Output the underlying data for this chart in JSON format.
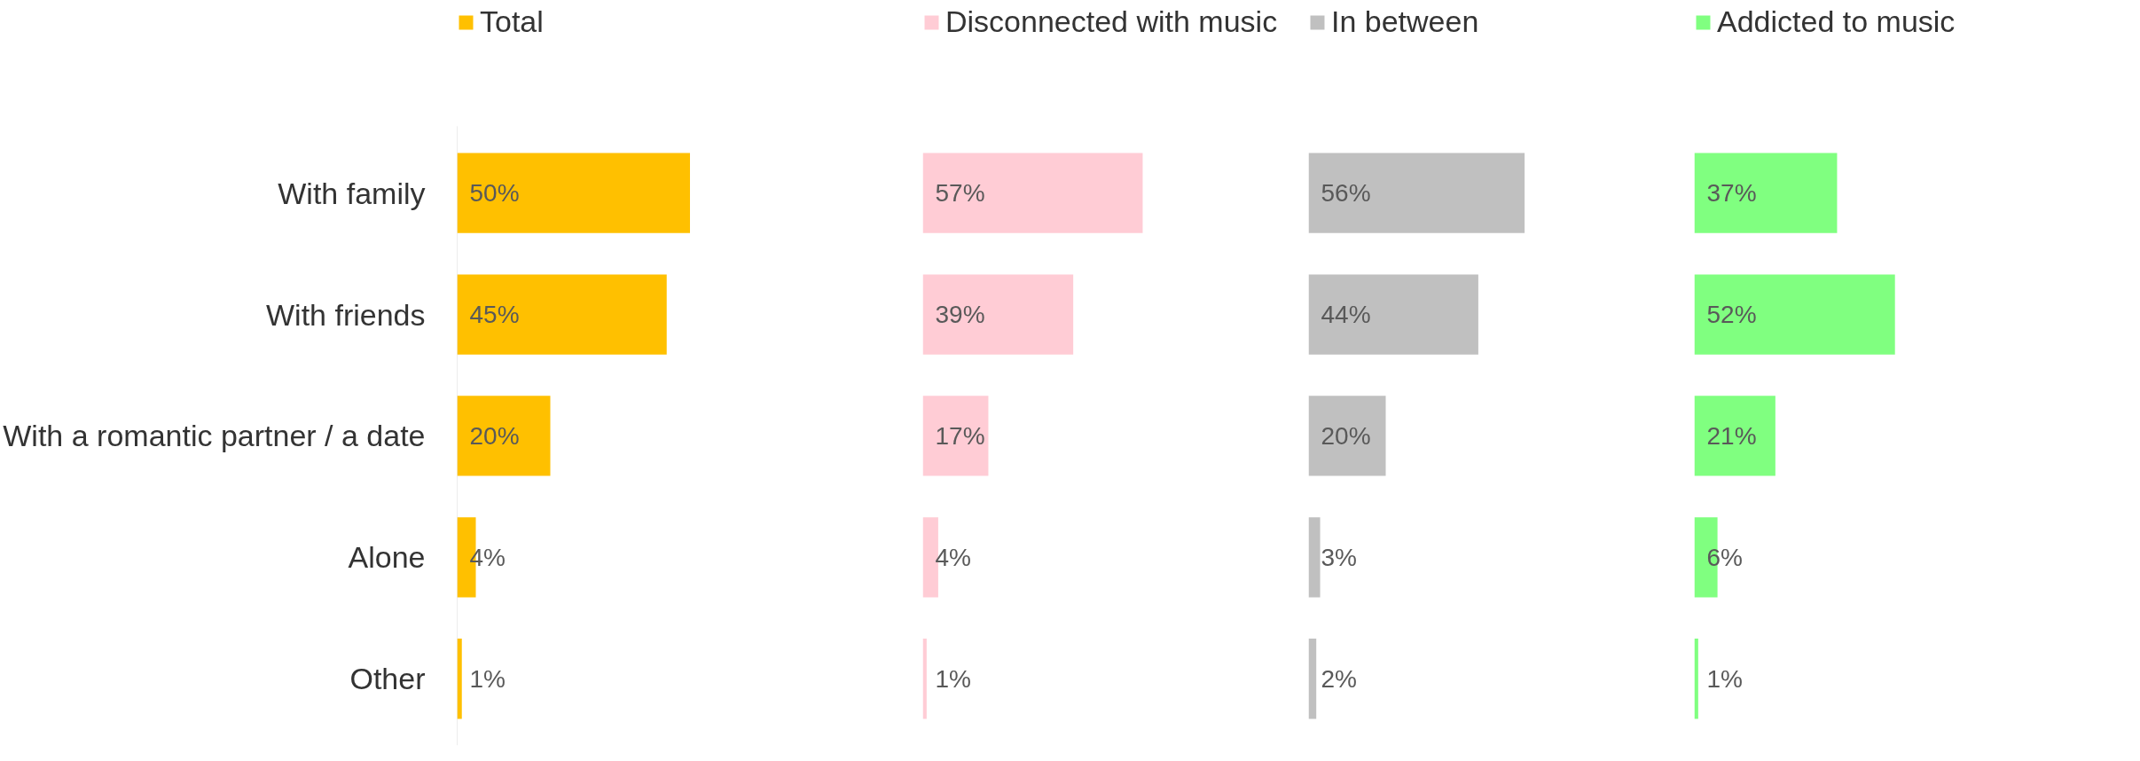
{
  "chart_data": [
    {
      "type": "bar",
      "orientation": "horizontal",
      "categories": [
        "With family",
        "With friends",
        "With a romantic partner / a date",
        "Alone",
        "Other"
      ],
      "tick_labels": "y",
      "legend": "top",
      "series": [
        {
          "name": "Total",
          "color": "#ffc000",
          "values": [
            50,
            45,
            20,
            4,
            1
          ],
          "value_labels": [
            "50%",
            "45%",
            "20%",
            "4%",
            "1%"
          ]
        }
      ]
    },
    {
      "type": "bar",
      "orientation": "horizontal",
      "tick_labels": false,
      "legend": "top",
      "series": [
        {
          "name": "Disconnected with music",
          "color": "#ffccd5",
          "values": [
            57,
            39,
            17,
            4,
            1
          ],
          "value_labels": [
            "57%",
            "39%",
            "17%",
            "4%",
            "1%"
          ]
        }
      ]
    },
    {
      "type": "bar",
      "orientation": "horizontal",
      "tick_labels": false,
      "legend": "top",
      "series": [
        {
          "name": "In between",
          "color": "#c0c0c0",
          "values": [
            56,
            44,
            20,
            3,
            2
          ],
          "value_labels": [
            "56%",
            "44%",
            "20%",
            "3%",
            "2%"
          ]
        }
      ]
    },
    {
      "type": "bar",
      "orientation": "horizontal",
      "tick_labels": false,
      "legend": "top",
      "series": [
        {
          "name": "Addicted to music",
          "color": "#80ff80",
          "values": [
            37,
            52,
            21,
            6,
            1
          ],
          "value_labels": [
            "37%",
            "52%",
            "21%",
            "6%",
            "1%"
          ]
        }
      ]
    }
  ]
}
